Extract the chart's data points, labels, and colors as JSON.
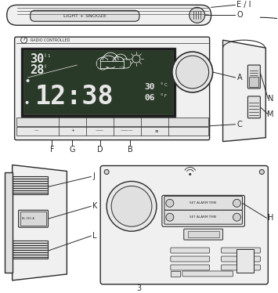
{
  "bg_color": "#ffffff",
  "line_color": "#2a2a2a",
  "page_number": "3",
  "labels": {
    "E_I": "E / I",
    "O": "O",
    "A": "A",
    "C": "C",
    "F": "F",
    "G": "G",
    "D": "D",
    "B": "B",
    "N": "N",
    "M": "M",
    "J": "J",
    "K": "K",
    "L": "L",
    "H": "H"
  },
  "light_snooze_text": "LIGHT + SNOOZE",
  "radio_controlled_text": "RADIO CONTROLLED",
  "time_text": "12:38",
  "temp1_text": "30",
  "temp2_text": "28",
  "small_text1": "30",
  "small_text2": "06"
}
